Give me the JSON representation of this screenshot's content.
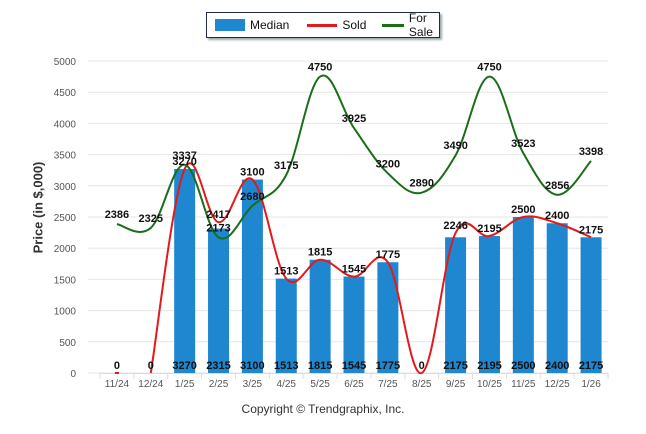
{
  "chart_data": {
    "type": "bar+line",
    "title": "",
    "xlabel": "",
    "ylabel": "Price (in $,000)",
    "ylim": [
      0,
      5000
    ],
    "yticks": [
      0,
      500,
      1000,
      1500,
      2000,
      2500,
      3000,
      3500,
      4000,
      4500,
      5000
    ],
    "grid": true,
    "legend_position": "top-center",
    "categories": [
      "11/24",
      "12/24",
      "1/25",
      "2/25",
      "3/25",
      "4/25",
      "5/25",
      "6/25",
      "7/25",
      "8/25",
      "9/25",
      "10/25",
      "11/25",
      "12/25",
      "1/26"
    ],
    "series": [
      {
        "name": "Median",
        "kind": "bar",
        "color": "#1f87d0",
        "values": [
          0,
          0,
          3270,
          2315,
          3100,
          1513,
          1815,
          1545,
          1775,
          0,
          2175,
          2195,
          2500,
          2400,
          2175
        ]
      },
      {
        "name": "Sold",
        "kind": "line",
        "color": "#e31a1c",
        "values": [
          0,
          0,
          3270,
          2417,
          3100,
          1513,
          1815,
          1545,
          1775,
          0,
          2246,
          2195,
          2500,
          2400,
          2175
        ]
      },
      {
        "name": "For Sale",
        "kind": "line",
        "color": "#1a6e1a",
        "values": [
          2386,
          2325,
          3337,
          2173,
          2680,
          3175,
          4750,
          3925,
          3200,
          2890,
          3490,
          4750,
          3523,
          2856,
          3398
        ]
      }
    ]
  },
  "legend": {
    "median": "Median",
    "sold": "Sold",
    "for_sale": "For Sale"
  },
  "copyright": "Copyright © Trendgraphix, Inc."
}
